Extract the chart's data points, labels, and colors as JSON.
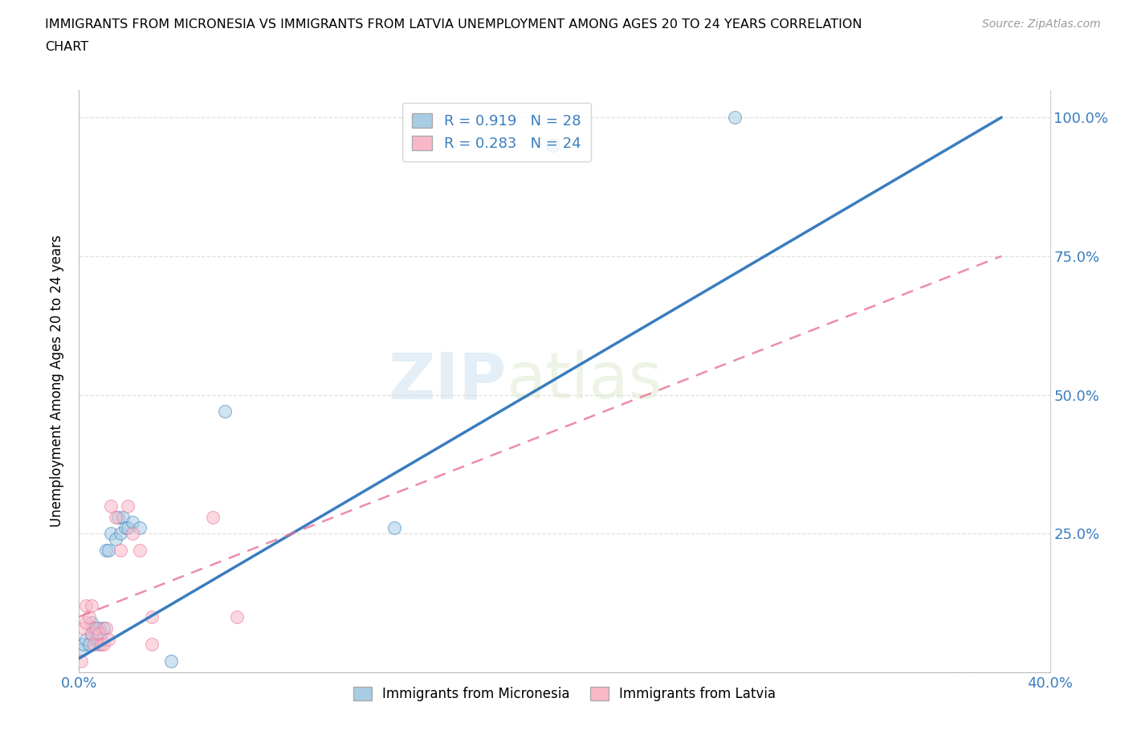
{
  "title_line1": "IMMIGRANTS FROM MICRONESIA VS IMMIGRANTS FROM LATVIA UNEMPLOYMENT AMONG AGES 20 TO 24 YEARS CORRELATION",
  "title_line2": "CHART",
  "source": "Source: ZipAtlas.com",
  "ylabel": "Unemployment Among Ages 20 to 24 years",
  "xlim": [
    0.0,
    0.4
  ],
  "ylim": [
    0.0,
    1.05
  ],
  "xticks": [
    0.0,
    0.1,
    0.2,
    0.3,
    0.4
  ],
  "xtick_labels": [
    "0.0%",
    "",
    "",
    "",
    "40.0%"
  ],
  "yticks": [
    0.0,
    0.25,
    0.5,
    0.75,
    1.0
  ],
  "ytick_labels": [
    "",
    "25.0%",
    "50.0%",
    "75.0%",
    "100.0%"
  ],
  "micronesia_R": 0.919,
  "micronesia_N": 28,
  "latvia_R": 0.283,
  "latvia_N": 24,
  "micronesia_color": "#a8cce4",
  "latvia_color": "#f9b8c8",
  "micronesia_line_color": "#3a7dbf",
  "latvia_line_color": "#e87098",
  "micronesia_x": [
    0.001,
    0.002,
    0.003,
    0.004,
    0.005,
    0.005,
    0.006,
    0.007,
    0.008,
    0.008,
    0.009,
    0.01,
    0.011,
    0.012,
    0.013,
    0.015,
    0.016,
    0.017,
    0.018,
    0.019,
    0.02,
    0.022,
    0.025,
    0.038,
    0.06,
    0.13,
    0.195,
    0.27
  ],
  "micronesia_y": [
    0.04,
    0.05,
    0.06,
    0.05,
    0.07,
    0.09,
    0.08,
    0.06,
    0.05,
    0.08,
    0.07,
    0.08,
    0.22,
    0.22,
    0.25,
    0.24,
    0.28,
    0.25,
    0.28,
    0.26,
    0.26,
    0.27,
    0.26,
    0.02,
    0.47,
    0.26,
    0.95,
    1.0
  ],
  "latvia_x": [
    0.001,
    0.002,
    0.003,
    0.003,
    0.004,
    0.005,
    0.005,
    0.006,
    0.007,
    0.008,
    0.009,
    0.01,
    0.011,
    0.012,
    0.013,
    0.015,
    0.017,
    0.02,
    0.022,
    0.025,
    0.03,
    0.03,
    0.055,
    0.065
  ],
  "latvia_y": [
    0.02,
    0.08,
    0.09,
    0.12,
    0.1,
    0.07,
    0.12,
    0.05,
    0.08,
    0.07,
    0.05,
    0.05,
    0.08,
    0.06,
    0.3,
    0.28,
    0.22,
    0.3,
    0.25,
    0.22,
    0.05,
    0.1,
    0.28,
    0.1
  ],
  "legend_label_micronesia": "Immigrants from Micronesia",
  "legend_label_latvia": "Immigrants from Latvia",
  "mic_line_x0": 0.0,
  "mic_line_y0": 0.025,
  "mic_line_x1": 0.38,
  "mic_line_y1": 1.0,
  "lat_line_x0": 0.0,
  "lat_line_y0": 0.1,
  "lat_line_x1": 0.38,
  "lat_line_y1": 0.75
}
